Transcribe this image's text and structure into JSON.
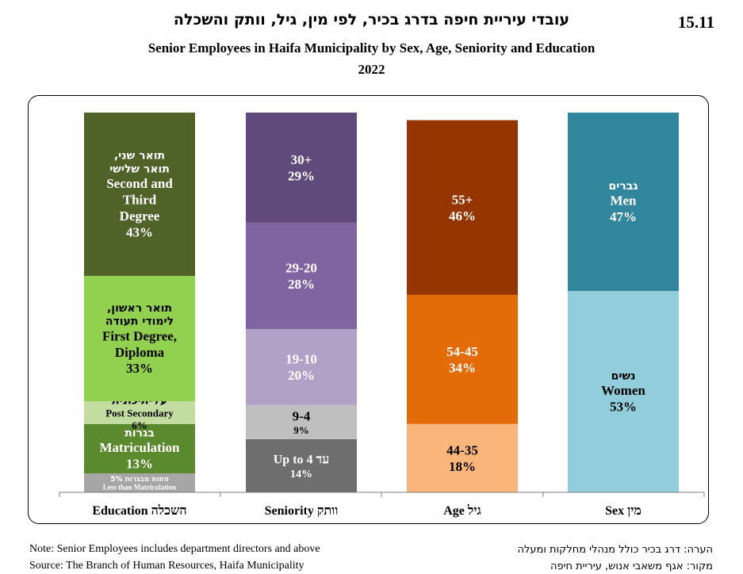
{
  "header": {
    "number": "15.11",
    "title_he": "עובדי עיריית חיפה בדרג בכיר, לפי מין, גיל, וותק והשכלה",
    "title_en": "Senior Employees in Haifa Municipality by Sex, Age, Seniority and Education",
    "year": "2022"
  },
  "footer": {
    "note_en": "Note: Senior Employees includes department directors and above",
    "source_en": "Source: The Branch of Human Resources, Haifa Municipality",
    "note_he": "הערה: דרג בכיר כולל מנהלי מחלקות ומעלה",
    "source_he": "מקור: אגף משאבי אנוש, עיריית חיפה"
  },
  "chart_data": {
    "type": "bar",
    "stacked": true,
    "normalized_percent": true,
    "ylim": [
      0,
      100
    ],
    "grid": false,
    "legend": "none",
    "categories": [
      {
        "label_en": "Education",
        "label_he": "השכלה",
        "segments": [
          {
            "value": 5,
            "lines_he": [
              "פחות מבגרות"
            ],
            "lines_en": [
              "Less than Matriculation"
            ],
            "color": "#a6a6a6",
            "text_color": "#ffffff",
            "small": true
          },
          {
            "value": 13,
            "lines_he": [
              "בגרות"
            ],
            "lines_en": [
              "Matriculation"
            ],
            "color": "#5b8a2e",
            "text_color": "#ffffff"
          },
          {
            "value": 6,
            "lines_he": [
              "על-תיכונית"
            ],
            "lines_en": [
              "Post Secondary"
            ],
            "color": "#c3dc9f",
            "text_color": "#000000"
          },
          {
            "value": 33,
            "lines_he": [
              "תואר ראשון,",
              "לימודי תעודה"
            ],
            "lines_en": [
              "First Degree,",
              "Diploma"
            ],
            "color": "#92d050",
            "text_color": "#000000"
          },
          {
            "value": 43,
            "lines_he": [
              "תואר שני,",
              "תואר שלישי"
            ],
            "lines_en": [
              "Second and",
              "Third",
              "Degree"
            ],
            "color": "#4f6228",
            "text_color": "#ffffff"
          }
        ]
      },
      {
        "label_en": "Seniority",
        "label_he": "וותק",
        "segments": [
          {
            "value": 14,
            "range": "4",
            "lines_he": [
              "עד"
            ],
            "lines_en": [
              "Up to"
            ],
            "color": "#6e6e6e",
            "text_color": "#ffffff"
          },
          {
            "value": 9,
            "range": "9-4",
            "lines_he": [],
            "lines_en": [],
            "color": "#bfbfbf",
            "text_color": "#000000"
          },
          {
            "value": 20,
            "range": "19-10",
            "lines_he": [],
            "lines_en": [],
            "color": "#b2a1c7",
            "text_color": "#ffffff"
          },
          {
            "value": 28,
            "range": "29-20",
            "lines_he": [],
            "lines_en": [],
            "color": "#8064a2",
            "text_color": "#ffffff"
          },
          {
            "value": 29,
            "range": "30+",
            "lines_he": [],
            "lines_en": [],
            "color": "#604a7b",
            "text_color": "#ffffff"
          }
        ]
      },
      {
        "label_en": "Age",
        "label_he": "גיל",
        "segments": [
          {
            "value": 18,
            "range": "44-35",
            "lines_he": [],
            "lines_en": [],
            "color": "#fab57a",
            "text_color": "#000000"
          },
          {
            "value": 34,
            "range": "54-45",
            "lines_he": [],
            "lines_en": [],
            "color": "#e36c09",
            "text_color": "#ffffff"
          },
          {
            "value": 46,
            "range": "55+",
            "lines_he": [],
            "lines_en": [],
            "color": "#953500",
            "text_color": "#ffffff"
          }
        ]
      },
      {
        "label_en": "Sex",
        "label_he": "מין",
        "segments": [
          {
            "value": 53,
            "lines_he": [
              "נשים"
            ],
            "lines_en": [
              "Women"
            ],
            "color": "#92cddc",
            "text_color": "#000000"
          },
          {
            "value": 47,
            "lines_he": [
              "גברים"
            ],
            "lines_en": [
              "Men"
            ],
            "color": "#31859c",
            "text_color": "#ffffff"
          }
        ]
      }
    ]
  }
}
